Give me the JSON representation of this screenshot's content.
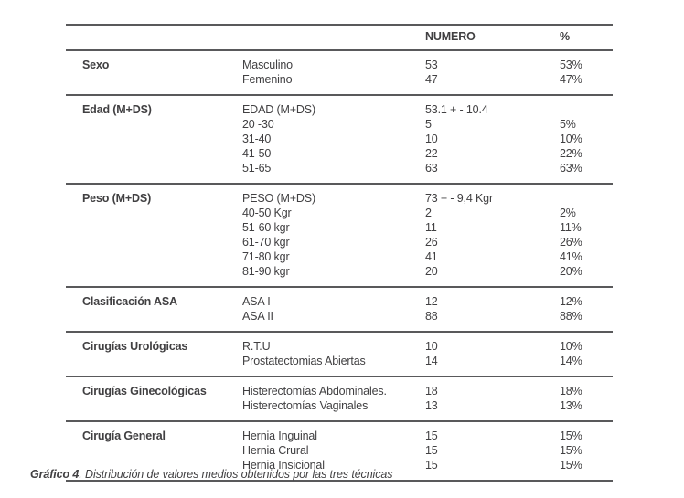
{
  "table": {
    "header": {
      "numero": "NUMERO",
      "percent": "%"
    },
    "sections": [
      {
        "category": "Sexo",
        "rows": [
          {
            "label": "Masculino",
            "numero": "53",
            "percent": "53%"
          },
          {
            "label": "Femenino",
            "numero": "47",
            "percent": "47%"
          }
        ]
      },
      {
        "category": "Edad (M+DS)",
        "rows": [
          {
            "label": "EDAD (M+DS)",
            "numero": "53.1 + - 10.4",
            "percent": ""
          },
          {
            "label": "20 -30",
            "numero": "5",
            "percent": "5%"
          },
          {
            "label": "31-40",
            "numero": "10",
            "percent": "10%"
          },
          {
            "label": "41-50",
            "numero": "22",
            "percent": "22%"
          },
          {
            "label": "51-65",
            "numero": "63",
            "percent": "63%"
          }
        ]
      },
      {
        "category": "Peso (M+DS)",
        "rows": [
          {
            "label": "PESO (M+DS)",
            "numero": "73 + - 9,4 Kgr",
            "percent": ""
          },
          {
            "label": "40-50 Kgr",
            "numero": "2",
            "percent": "2%"
          },
          {
            "label": "51-60 kgr",
            "numero": "11",
            "percent": "11%"
          },
          {
            "label": "61-70 kgr",
            "numero": "26",
            "percent": "26%"
          },
          {
            "label": "71-80 kgr",
            "numero": "41",
            "percent": "41%"
          },
          {
            "label": "81-90 kgr",
            "numero": "20",
            "percent": "20%"
          }
        ]
      },
      {
        "category": "Clasificación ASA",
        "rows": [
          {
            "label": "ASA I",
            "numero": "12",
            "percent": "12%"
          },
          {
            "label": "ASA II",
            "numero": "88",
            "percent": "88%"
          }
        ]
      },
      {
        "category": "Cirugías Urológicas",
        "rows": [
          {
            "label": "R.T.U",
            "numero": "10",
            "percent": "10%"
          },
          {
            "label": "Prostatectomias Abiertas",
            "numero": "14",
            "percent": "14%"
          }
        ]
      },
      {
        "category": "Cirugías Ginecológicas",
        "rows": [
          {
            "label": "Histerectomías Abdominales.",
            "numero": "18",
            "percent": "18%"
          },
          {
            "label": "Histerectomías Vaginales",
            "numero": "13",
            "percent": "13%"
          }
        ]
      },
      {
        "category": "Cirugía General",
        "rows": [
          {
            "label": "Hernia Inguinal",
            "numero": "15",
            "percent": "15%"
          },
          {
            "label": "Hernia Crural",
            "numero": "15",
            "percent": "15%"
          },
          {
            "label": "Hernia Insicional",
            "numero": "15",
            "percent": "15%"
          }
        ]
      }
    ]
  },
  "caption": {
    "label": "Gráfico 4",
    "text": ". Distribución de valores medios obtenidos por las tres técnicas"
  }
}
